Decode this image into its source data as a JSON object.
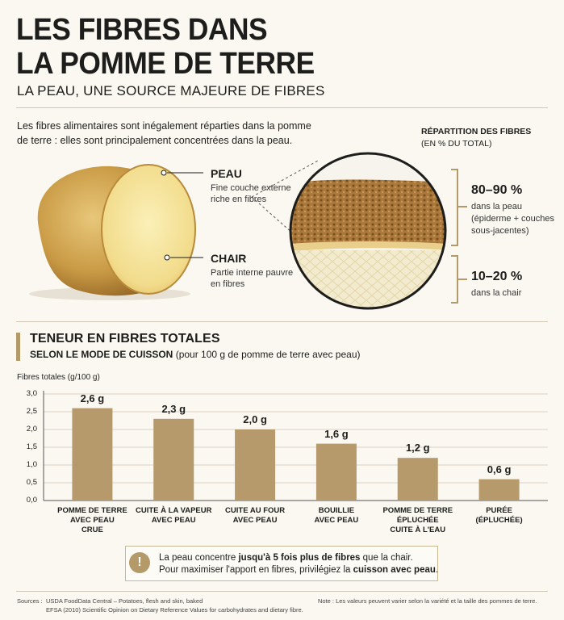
{
  "title_line1": "LES FIBRES DANS",
  "title_line2": "LA POMME DE TERRE",
  "subtitle": "LA PEAU, UNE SOURCE MAJEURE DE FIBRES",
  "intro": "Les fibres alimentaires sont inégalement réparties dans la pomme de terre : elles sont principalement concentrées dans la peau.",
  "peau": {
    "title": "PEAU",
    "desc": "Fine couche externe riche en fibres"
  },
  "chair": {
    "title": "CHAIR",
    "desc": "Partie interne pauvre en fibres"
  },
  "repartition": {
    "title": "RÉPARTITION DES FIBRES",
    "subtitle": "(EN % DU TOTAL)",
    "peau_pct": "80–90 %",
    "peau_desc1": "dans la peau",
    "peau_desc2": "(épiderme + couches sous-jacentes)",
    "chair_pct": "10–20 %",
    "chair_desc": "dans la chair"
  },
  "section": {
    "title": "TENEUR EN FIBRES TOTALES",
    "subtitle_bold": "SELON LE MODE DE CUISSON",
    "subtitle_rest": " (pour 100 g de pomme de terre avec peau)"
  },
  "chart_data": {
    "type": "bar",
    "ylabel": "Fibres totales (g/100 g)",
    "ylim": [
      0,
      3.0
    ],
    "yticks": [
      "0,0",
      "0,5",
      "1,0",
      "1,5",
      "2,0",
      "2,5",
      "3,0"
    ],
    "grid": true,
    "categories": [
      [
        "POMME DE TERRE",
        "AVEC PEAU",
        "CRUE"
      ],
      [
        "CUITE À LA VAPEUR",
        "AVEC PEAU"
      ],
      [
        "CUITE AU FOUR",
        "AVEC PEAU"
      ],
      [
        "BOUILLIE",
        "AVEC PEAU"
      ],
      [
        "POMME DE TERRE",
        "ÉPLUCHÉE",
        "CUITE À L'EAU"
      ],
      [
        "PURÉE",
        "(ÉPLUCHÉE)"
      ]
    ],
    "values": [
      2.6,
      2.3,
      2.0,
      1.6,
      1.2,
      0.6
    ],
    "labels": [
      "2,6 g",
      "2,3 g",
      "2,0 g",
      "1,6 g",
      "1,2 g",
      "0,6 g"
    ],
    "bar_color": "#b69a6c"
  },
  "note": {
    "icon": "!",
    "line1_a": "La peau concentre ",
    "line1_b": "jusqu'à 5 fois plus de fibres",
    "line1_c": " que la chair.",
    "line2_a": "Pour maximiser l'apport en fibres, privilégiez la ",
    "line2_b": "cuisson avec peau",
    "line2_c": "."
  },
  "sources_label": "Sources :",
  "sources_1": "USDA FoodData Central – Potatoes, flesh and skin, baked",
  "sources_2": "EFSA (2010) Scientific Opinion on Dietary Reference Values for carbohydrates and dietary fibre.",
  "note_footer": "Note : Les valeurs peuvent varier selon la variété et la taille des pommes de terre.",
  "colors": {
    "accent": "#b59a69",
    "bar": "#b69a6c",
    "background": "#fbf8f1"
  }
}
